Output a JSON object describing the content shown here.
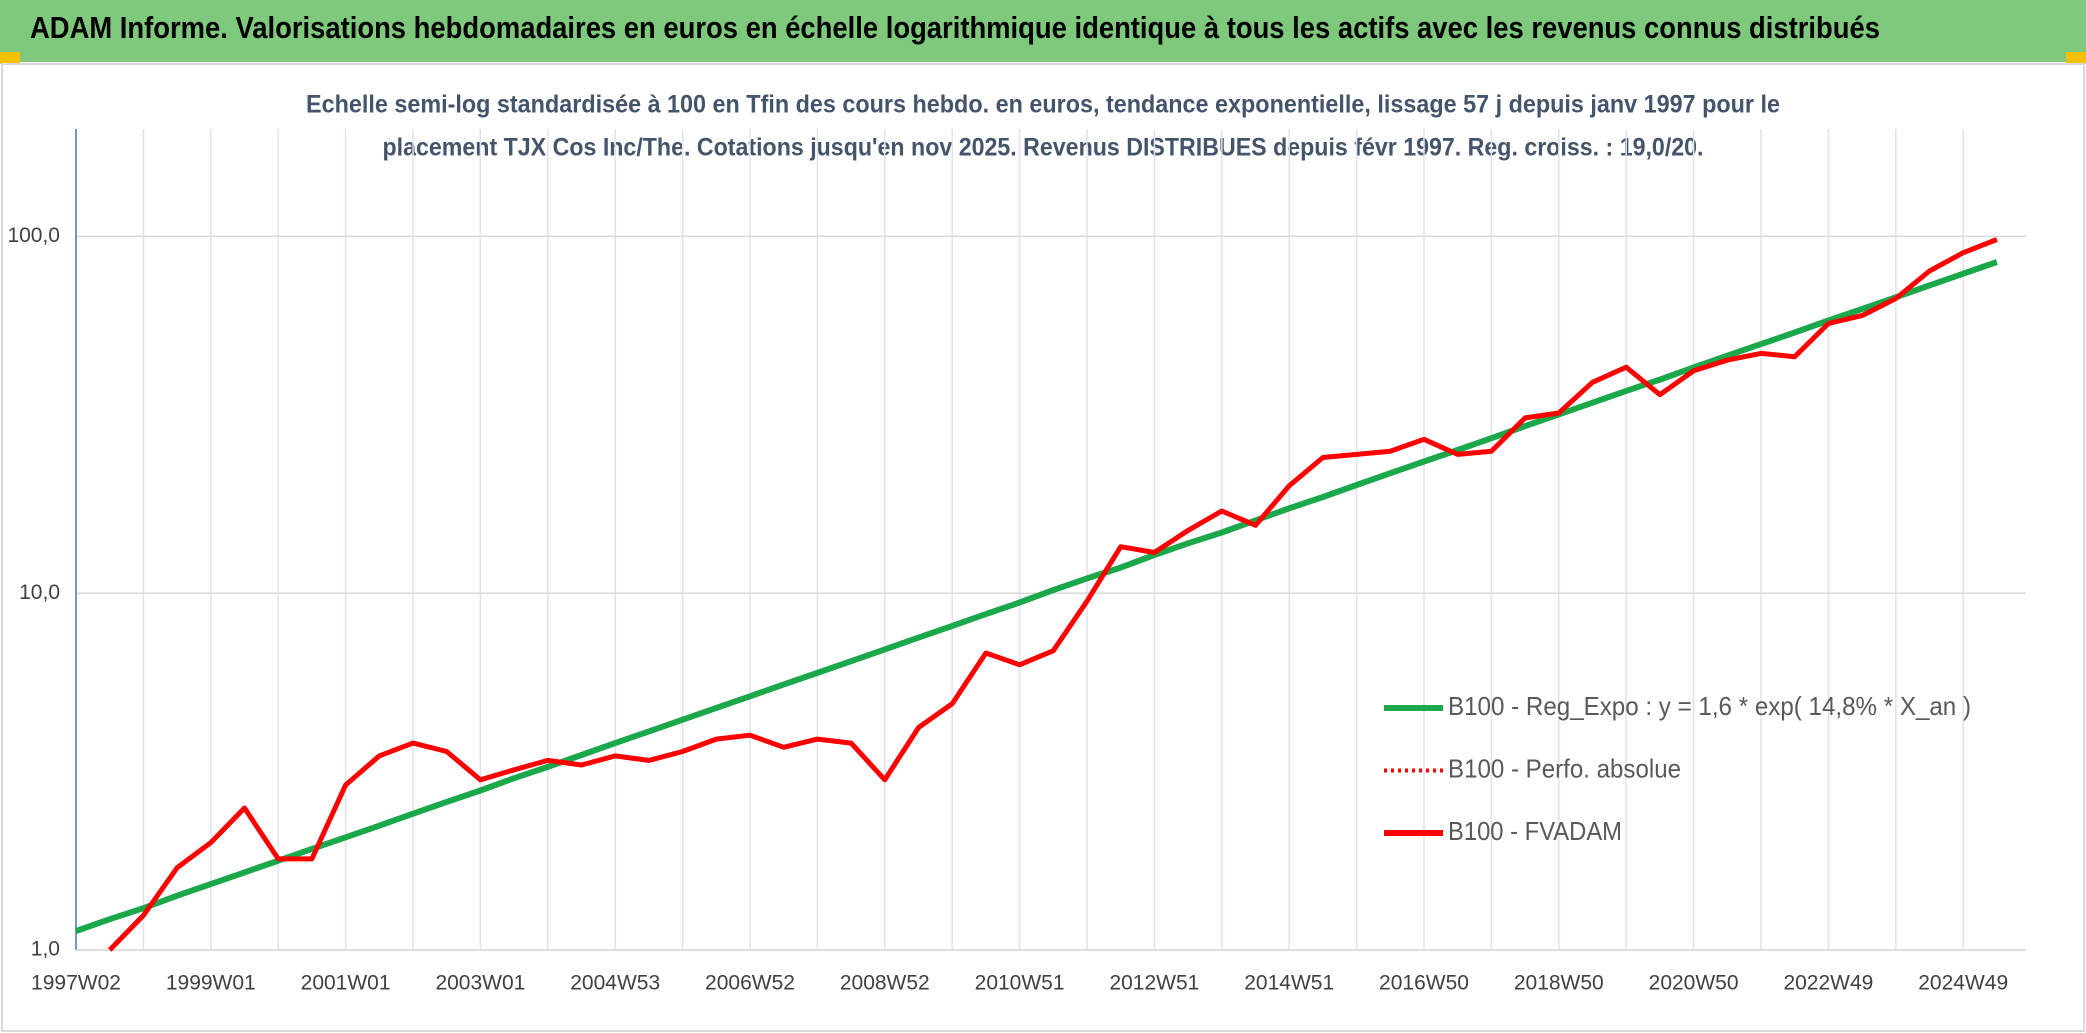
{
  "chart_data": {
    "type": "line",
    "title": "ADAM Informe. Valorisations hebdomadaires en euros en échelle logarithmique identique à tous les actifs avec les revenus connus distribués",
    "subtitle": [
      "Echelle semi-log standardisée à 100 en Tfin des cours hebdo. en euros, tendance exponentielle, lissage 57 j depuis janv 1997 pour le",
      "placement TJX Cos Inc/The. Cotations jusqu'en nov 2025. Revenus DISTRIBUES depuis févr 1997. Reg. croiss. : 19,0/20."
    ],
    "categories": [
      "1997W02",
      null,
      null,
      null,
      "1999W01",
      null,
      null,
      null,
      "2001W01",
      null,
      null,
      null,
      "2003W01",
      null,
      null,
      null,
      "2004W53",
      null,
      null,
      null,
      "2006W52",
      null,
      null,
      null,
      "2008W52",
      null,
      null,
      null,
      "2010W51",
      null,
      null,
      null,
      "2012W51",
      null,
      null,
      null,
      "2014W51",
      null,
      null,
      null,
      "2016W50",
      null,
      null,
      null,
      "2018W50",
      null,
      null,
      null,
      "2020W50",
      null,
      null,
      null,
      "2022W49",
      null,
      null,
      null,
      "2024W49",
      null
    ],
    "series": [
      {
        "name": "B100 - Reg_Expo : y = 1,6 * exp( 14,8% *  X_an )",
        "color": "#1aa84a",
        "style": "solid",
        "values": [
          1.13,
          1.22,
          1.31,
          1.42,
          1.53,
          1.65,
          1.78,
          1.92,
          2.07,
          2.23,
          2.41,
          2.6,
          2.8,
          3.03,
          3.26,
          3.52,
          3.8,
          4.1,
          4.42,
          4.77,
          5.14,
          5.55,
          5.98,
          6.45,
          6.96,
          7.51,
          8.1,
          8.74,
          9.42,
          10.2,
          11.0,
          11.8,
          12.8,
          13.8,
          14.8,
          16.0,
          17.3,
          18.6,
          20.1,
          21.7,
          23.4,
          25.2,
          27.2,
          29.4,
          31.7,
          34.2,
          36.9,
          39.7,
          42.9,
          46.3,
          49.9,
          53.8,
          58.1,
          62.6,
          67.5,
          72.9,
          78.6,
          84.8
        ]
      },
      {
        "name": "B100 - Perfo. absolue",
        "color": "#ff0000",
        "style": "dotted",
        "values": [
          null,
          null,
          null,
          null,
          null,
          null,
          null,
          null,
          null,
          null,
          null,
          null,
          null,
          null,
          null,
          null,
          null,
          null,
          null,
          null,
          null,
          null,
          null,
          null,
          null,
          null,
          null,
          null,
          null,
          null,
          null,
          null,
          null,
          null,
          null,
          null,
          null,
          null,
          null,
          null,
          null,
          null,
          null,
          null,
          null,
          null,
          null,
          null,
          null,
          null,
          null,
          null,
          null,
          null,
          null,
          null,
          null,
          null
        ]
      },
      {
        "name": "B100 - FVADAM",
        "color": "#ff0000",
        "style": "solid",
        "values": [
          null,
          1.0,
          1.25,
          1.7,
          2.0,
          2.5,
          1.8,
          1.8,
          2.9,
          3.5,
          3.8,
          3.6,
          3.0,
          3.2,
          3.4,
          3.3,
          3.5,
          3.4,
          3.6,
          3.9,
          4.0,
          3.7,
          3.9,
          3.8,
          3.0,
          4.2,
          4.9,
          6.8,
          6.3,
          6.9,
          9.5,
          13.5,
          13,
          15,
          17,
          15.5,
          20,
          24,
          24.5,
          25,
          27,
          24.5,
          25,
          31,
          32,
          39,
          43,
          36,
          42,
          45,
          47,
          46,
          57,
          60,
          67,
          80,
          90,
          98
        ]
      }
    ],
    "log_scale": true,
    "ylim": [
      1,
      200
    ],
    "yticks": [
      {
        "value": 1,
        "label": "1,0"
      },
      {
        "value": 10,
        "label": "10,0"
      },
      {
        "value": 100,
        "label": "100,0"
      }
    ],
    "grid": true
  }
}
